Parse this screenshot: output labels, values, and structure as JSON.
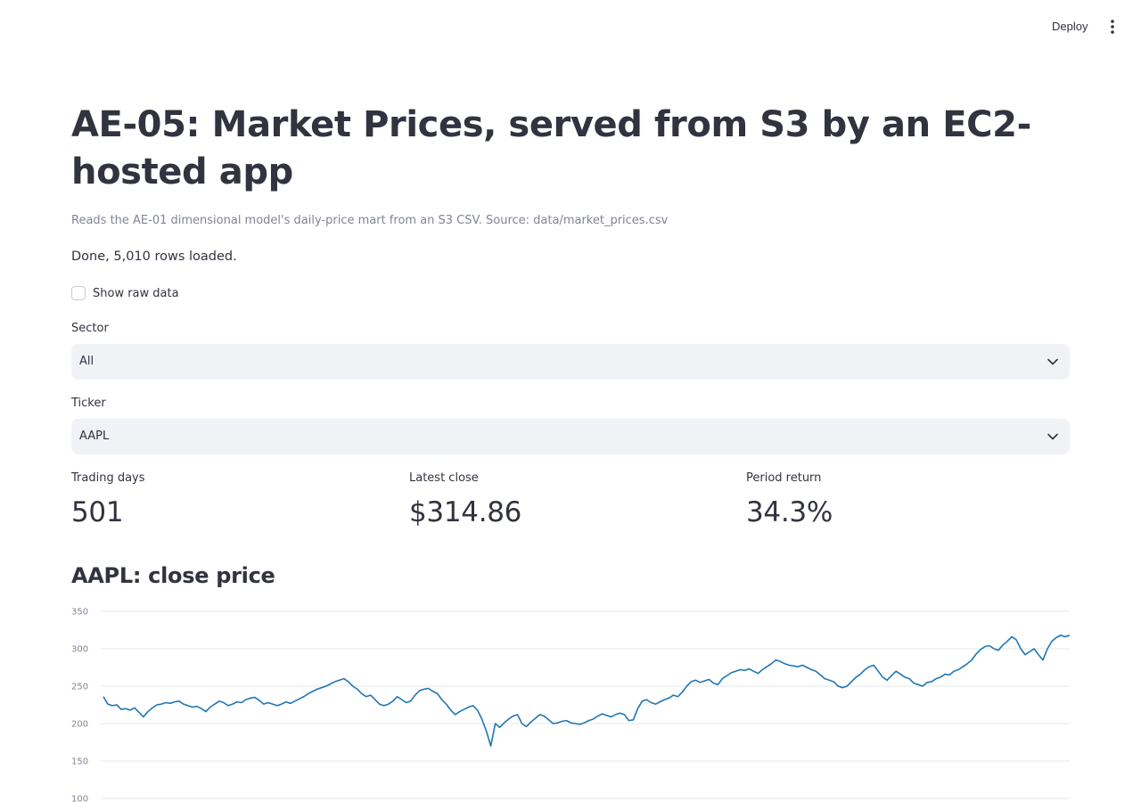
{
  "header": {
    "deploy_label": "Deploy",
    "menu_icon": "more-vertical-icon"
  },
  "page": {
    "title": "AE-05: Market Prices, served from S3 by an EC2-hosted app",
    "caption": "Reads the AE-01 dimensional model's daily-price mart from an S3 CSV. Source: data/market_prices.csv",
    "status": "Done, 5,010 rows loaded."
  },
  "controls": {
    "show_raw": {
      "label": "Show raw data",
      "checked": false
    },
    "sector": {
      "label": "Sector",
      "value": "All"
    },
    "ticker": {
      "label": "Ticker",
      "value": "AAPL"
    }
  },
  "metrics": [
    {
      "label": "Trading days",
      "value": "501"
    },
    {
      "label": "Latest close",
      "value": "$314.86"
    },
    {
      "label": "Period return",
      "value": "34.3%"
    }
  ],
  "chart_title": "AAPL: close price",
  "colors": {
    "line": "#1f77b4",
    "grid": "#e6e7eb",
    "text": "#31333f",
    "muted": "#808495",
    "select_bg": "#f0f2f6"
  },
  "chart_data": {
    "type": "line",
    "title": "AAPL: close price",
    "xlabel": "",
    "ylabel": "",
    "ylim": [
      100,
      350
    ],
    "yticks": [
      100,
      150,
      200,
      250,
      300,
      350
    ],
    "grid": true,
    "x_axis_visible": false,
    "series": [
      {
        "values": [
          236,
          226,
          224,
          225,
          219,
          220,
          218,
          221,
          215,
          209,
          216,
          221,
          225,
          226,
          228,
          227,
          229,
          230,
          226,
          224,
          222,
          223,
          220,
          216,
          222,
          226,
          230,
          228,
          224,
          226,
          229,
          228,
          232,
          234,
          235,
          231,
          226,
          228,
          226,
          224,
          226,
          229,
          227,
          230,
          233,
          236,
          240,
          243,
          246,
          248,
          250,
          253,
          256,
          258,
          260,
          256,
          250,
          246,
          240,
          236,
          238,
          232,
          226,
          224,
          226,
          230,
          236,
          232,
          228,
          230,
          238,
          244,
          246,
          247,
          243,
          240,
          232,
          226,
          218,
          212,
          216,
          219,
          222,
          224,
          218,
          206,
          190,
          170,
          200,
          195,
          201,
          206,
          210,
          212,
          200,
          196,
          202,
          207,
          212,
          210,
          205,
          200,
          201,
          203,
          204,
          201,
          200,
          199,
          201,
          204,
          206,
          210,
          213,
          211,
          209,
          212,
          214,
          212,
          204,
          205,
          220,
          230,
          232,
          228,
          226,
          229,
          232,
          234,
          238,
          236,
          242,
          250,
          256,
          258,
          255,
          257,
          259,
          254,
          252,
          260,
          264,
          268,
          270,
          272,
          271,
          273,
          270,
          267,
          272,
          276,
          280,
          285,
          283,
          280,
          278,
          277,
          276,
          278,
          275,
          272,
          270,
          265,
          260,
          258,
          256,
          250,
          248,
          250,
          256,
          262,
          266,
          272,
          276,
          278,
          270,
          262,
          258,
          264,
          270,
          266,
          262,
          260,
          254,
          252,
          250,
          255,
          256,
          260,
          262,
          266,
          265,
          270,
          272,
          276,
          280,
          285,
          293,
          299,
          303,
          304,
          300,
          298,
          305,
          310,
          316,
          312,
          300,
          292,
          296,
          300,
          292,
          285,
          300,
          310,
          315,
          318,
          316,
          318
        ]
      }
    ]
  }
}
